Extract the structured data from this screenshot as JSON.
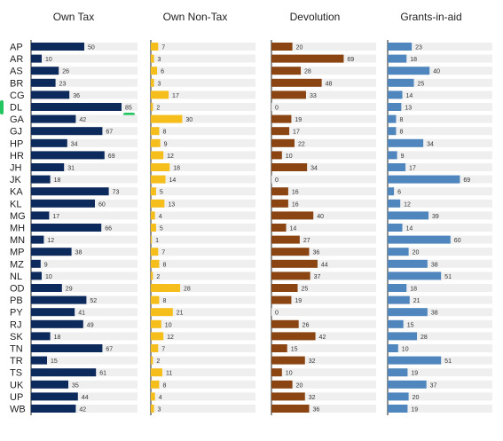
{
  "chart_data": {
    "type": "bar",
    "orientation": "horizontal",
    "layout": "small-multiples",
    "categories": [
      "AP",
      "AR",
      "AS",
      "BR",
      "CG",
      "DL",
      "GA",
      "GJ",
      "HP",
      "HR",
      "JH",
      "JK",
      "KA",
      "KL",
      "MG",
      "MH",
      "MN",
      "MP",
      "MZ",
      "NL",
      "OD",
      "PB",
      "PY",
      "RJ",
      "SK",
      "TN",
      "TR",
      "TS",
      "UK",
      "UP",
      "WB"
    ],
    "series": [
      {
        "name": "Own Tax",
        "color": "#0d2a5c",
        "values": [
          50,
          10,
          26,
          23,
          36,
          85,
          42,
          67,
          34,
          69,
          31,
          18,
          73,
          60,
          17,
          66,
          12,
          38,
          9,
          10,
          29,
          52,
          41,
          49,
          18,
          67,
          15,
          61,
          35,
          44,
          42
        ]
      },
      {
        "name": "Own Non-Tax",
        "color": "#f5be1a",
        "values": [
          7,
          3,
          6,
          3,
          17,
          2,
          30,
          8,
          9,
          12,
          18,
          14,
          5,
          13,
          4,
          5,
          1,
          7,
          8,
          2,
          28,
          8,
          21,
          10,
          12,
          7,
          2,
          11,
          8,
          4,
          3
        ]
      },
      {
        "name": "Devolution",
        "color": "#8b4513",
        "values": [
          20,
          69,
          28,
          48,
          33,
          0,
          19,
          17,
          22,
          10,
          34,
          0,
          16,
          16,
          40,
          14,
          27,
          36,
          44,
          37,
          25,
          19,
          0,
          26,
          42,
          15,
          32,
          10,
          20,
          32,
          36
        ]
      },
      {
        "name": "Grants-in-aid",
        "color": "#4f86bd",
        "values": [
          23,
          18,
          40,
          25,
          14,
          13,
          8,
          8,
          34,
          9,
          17,
          69,
          6,
          12,
          39,
          14,
          60,
          20,
          38,
          51,
          18,
          21,
          38,
          15,
          28,
          10,
          51,
          19,
          37,
          20,
          19
        ]
      }
    ],
    "xlim": [
      0,
      100
    ],
    "highlight_category": "DL"
  }
}
